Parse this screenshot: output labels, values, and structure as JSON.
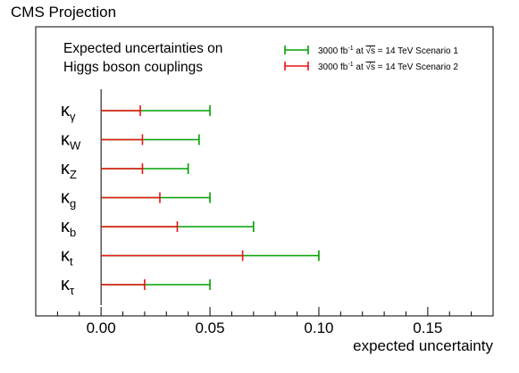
{
  "header": {
    "title": "CMS Projection"
  },
  "chart_data": {
    "type": "bar",
    "title": "Expected uncertainties on Higgs boson couplings",
    "title_lines": [
      "Expected uncertainties on",
      "Higgs boson couplings"
    ],
    "xlabel": "expected uncertainty",
    "ylabel": "",
    "xlim": [
      -0.03,
      0.18
    ],
    "xticks": [
      0.0,
      0.05,
      0.1,
      0.15
    ],
    "xtick_labels": [
      "0.00",
      "0.05",
      "0.10",
      "0.15"
    ],
    "grid": false,
    "legend_position": "top-right",
    "categories": [
      {
        "base": "κ",
        "sub": "γ"
      },
      {
        "base": "κ",
        "sub": "W"
      },
      {
        "base": "κ",
        "sub": "Z"
      },
      {
        "base": "κ",
        "sub": "g"
      },
      {
        "base": "κ",
        "sub": "b"
      },
      {
        "base": "κ",
        "sub": "t"
      },
      {
        "base": "κ",
        "sub": "τ"
      }
    ],
    "series": [
      {
        "name": "3000 fb⁻¹ at √s = 14 TeV Scenario 1",
        "legend": {
          "lumi": "3000 fb",
          "exp": "-1",
          "at": " at ",
          "sqrt": "√s",
          "rest": " = 14 TeV Scenario 1"
        },
        "color": "#00a000",
        "values": [
          0.05,
          0.045,
          0.04,
          0.05,
          0.07,
          0.1,
          0.05
        ]
      },
      {
        "name": "3000 fb⁻¹ at √s = 14 TeV Scenario 2",
        "legend": {
          "lumi": "3000 fb",
          "exp": "-1",
          "at": " at ",
          "sqrt": "√s",
          "rest": " = 14 TeV Scenario 2"
        },
        "color": "#ee1111",
        "values": [
          0.018,
          0.019,
          0.019,
          0.027,
          0.035,
          0.065,
          0.02
        ]
      }
    ]
  }
}
